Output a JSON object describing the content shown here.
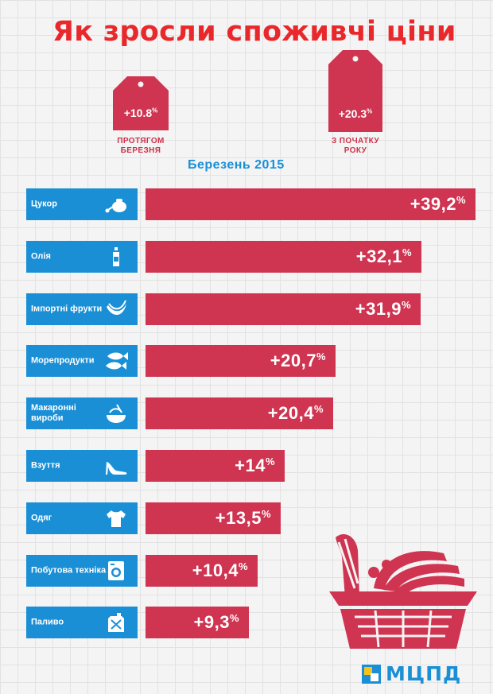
{
  "title": "Як зросли споживчі ціни",
  "tags": {
    "march": {
      "value": "+10.8",
      "unit": "%",
      "caption_line1": "ПРОТЯГОМ",
      "caption_line2": "БЕРЕЗНЯ"
    },
    "ytd": {
      "value": "+20.3",
      "unit": "%",
      "caption_line1": "З ПОЧАТКУ",
      "caption_line2": "РОКУ"
    }
  },
  "subtitle": "Березень 2015",
  "logo": {
    "text": "МЦПД"
  },
  "colors": {
    "title": "#e8282b",
    "bar": "#cf3451",
    "category": "#1a8fd6",
    "caption": "#d0304a",
    "background": "#f4f4f4"
  },
  "chart_data": {
    "type": "bar",
    "orientation": "horizontal",
    "title": "Як зросли споживчі ціни",
    "subtitle": "Березень 2015",
    "unit": "%",
    "categories": [
      "Цукор",
      "Олія",
      "Імпортні фрукти",
      "Морепродукти",
      "Макаронні вироби",
      "Взуття",
      "Одяг",
      "Побутова техніка",
      "Паливо"
    ],
    "values": [
      39.2,
      32.1,
      31.9,
      20.7,
      20.4,
      14,
      13.5,
      10.4,
      9.3
    ],
    "labels": [
      "+39,2",
      "+32,1",
      "+31,9",
      "+20,7",
      "+20,4",
      "+14",
      "+13,5",
      "+10,4",
      "+9,3"
    ],
    "icons": [
      "sugar-bowl-icon",
      "oil-bottle-icon",
      "bananas-icon",
      "fish-icon",
      "pasta-icon",
      "high-heel-shoe-icon",
      "tshirt-icon",
      "washing-machine-icon",
      "fuel-canister-icon"
    ],
    "grid": true,
    "legend": "none"
  }
}
